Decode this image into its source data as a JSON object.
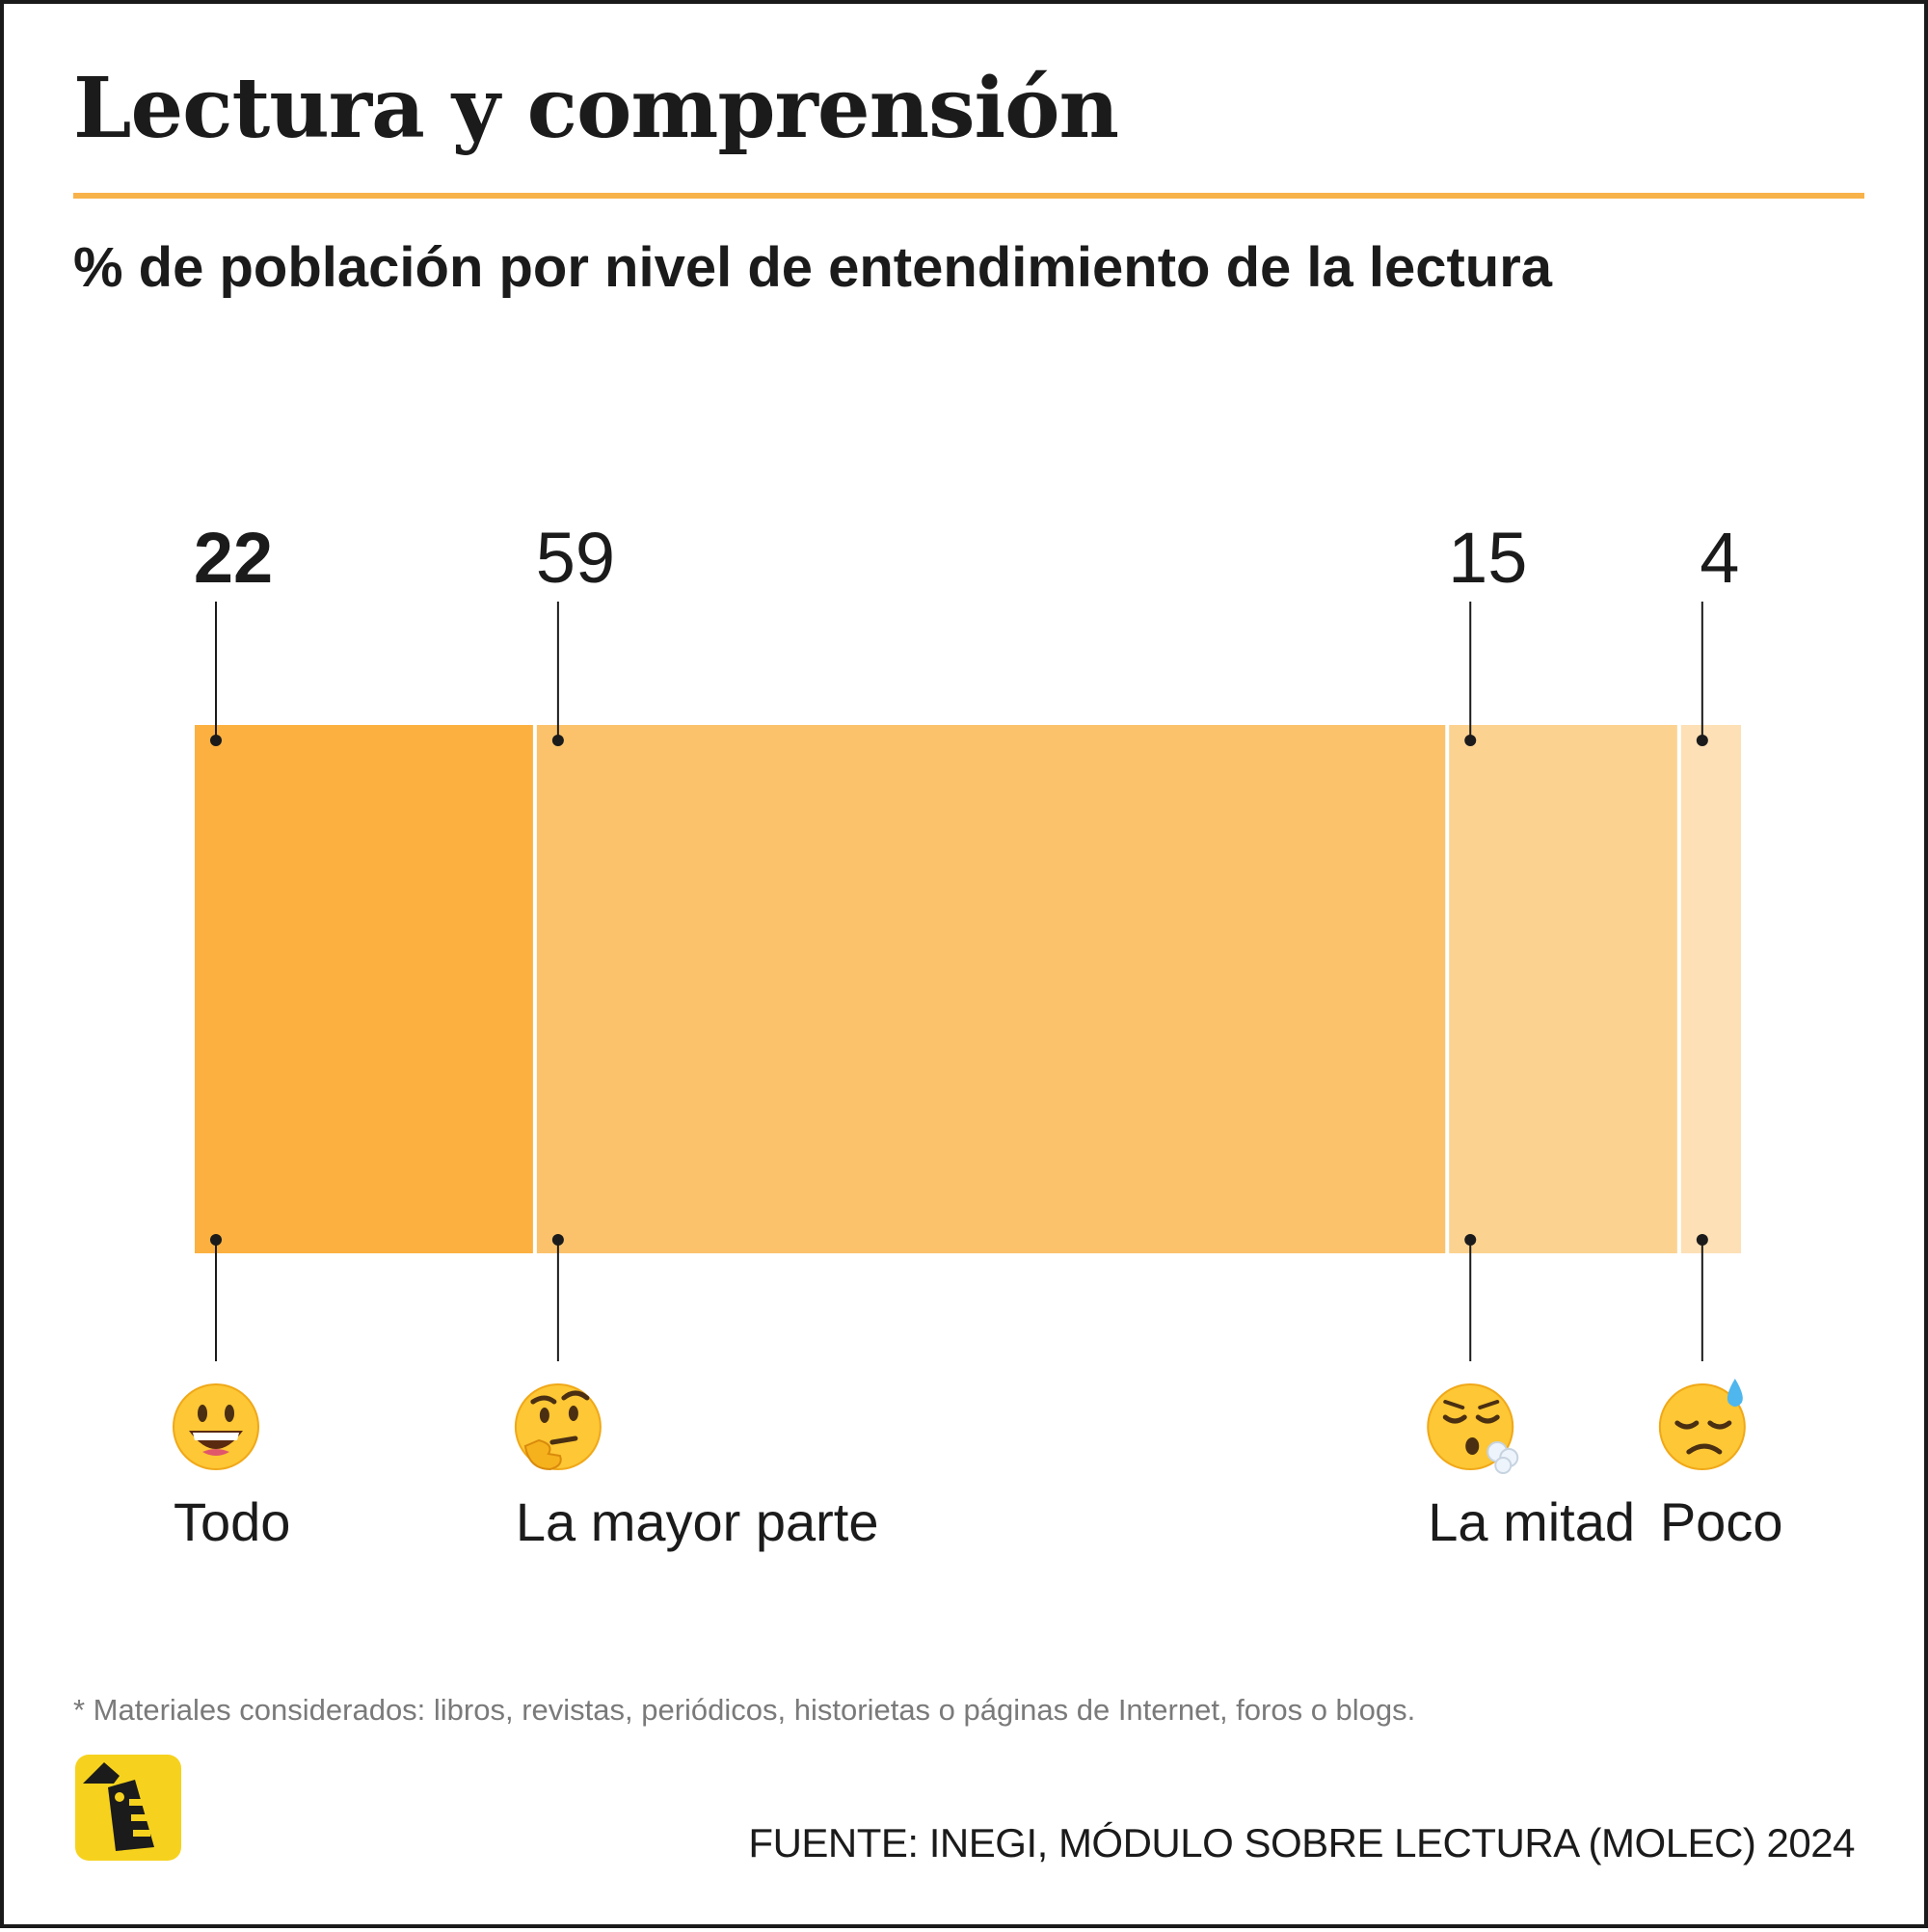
{
  "title": "Lectura y comprensión",
  "subtitle": "% de población por nivel de entendimiento de la lectura",
  "footnote": "* Materiales considerados: libros, revistas, periódicos, historietas o páginas de Internet, foros o blogs.",
  "source": "FUENTE: INEGI, MÓDULO SOBRE LECTURA (MOLEC) 2024",
  "colors": {
    "accent": "#f8b24a",
    "segments": [
      "#fbb040",
      "#fbc26b",
      "#fcd290",
      "#fde0b5"
    ],
    "text": "#1b1b1b",
    "muted": "#7a7a7a"
  },
  "chart_data": {
    "type": "bar",
    "orientation": "horizontal-stacked",
    "categories": [
      "Todo",
      "La mayor parte",
      "La mitad",
      "Poco"
    ],
    "values": [
      22,
      59,
      15,
      4
    ],
    "icons": [
      "grinning-face-icon",
      "thinking-face-icon",
      "face-exhaling-icon",
      "sad-sweat-face-icon"
    ],
    "total": 100
  },
  "logo": {
    "icon": "logo-icon"
  }
}
